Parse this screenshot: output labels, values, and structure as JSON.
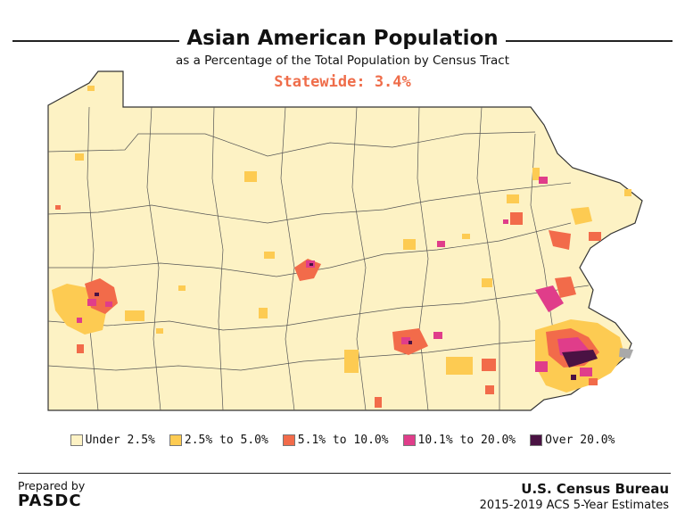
{
  "header": {
    "title": "Asian American Population",
    "subtitle": "as a Percentage of the Total Population by Census Tract",
    "statewide": "Statewide: 3.4%"
  },
  "legend": [
    {
      "label": "Under 2.5%",
      "color": "#fdf2c4"
    },
    {
      "label": "2.5% to 5.0%",
      "color": "#fdcb52"
    },
    {
      "label": "5.1% to 10.0%",
      "color": "#f26b4a"
    },
    {
      "label": "10.1% to 20.0%",
      "color": "#e03d8a"
    },
    {
      "label": "Over 20.0%",
      "color": "#4a1243"
    }
  ],
  "map": {
    "base_color": "#fdf2c4",
    "boundary_color": "#6b6a52",
    "missing_data_color": "#a9a9a9"
  },
  "footer": {
    "prepared_by": "Prepared by",
    "organization": "PASDC",
    "source": "U.S. Census Bureau",
    "edition": "2015-2019 ACS 5-Year Estimates"
  }
}
